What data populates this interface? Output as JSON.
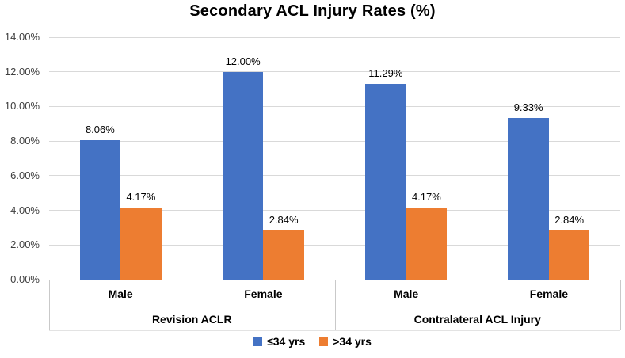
{
  "chart_data": {
    "type": "bar",
    "title": "Secondary ACL Injury Rates (%)",
    "xlabel": "",
    "ylabel": "",
    "groups": [
      {
        "label": "Revision ACLR",
        "categories": [
          "Male",
          "Female"
        ]
      },
      {
        "label": "Contralateral ACL Injury",
        "categories": [
          "Male",
          "Female"
        ]
      }
    ],
    "series": [
      {
        "name": "≤34 yrs",
        "color": "#4472C4",
        "values": [
          [
            8.06,
            12.0
          ],
          [
            11.29,
            9.33
          ]
        ],
        "labels": [
          [
            "8.06%",
            "12.00%"
          ],
          [
            "11.29%",
            "9.33%"
          ]
        ]
      },
      {
        "name": ">34 yrs",
        "color": "#ED7D31",
        "values": [
          [
            4.17,
            2.84
          ],
          [
            4.17,
            2.84
          ]
        ],
        "labels": [
          [
            "4.17%",
            "2.84%"
          ],
          [
            "4.17%",
            "2.84%"
          ]
        ]
      }
    ],
    "ylim": [
      0,
      14
    ],
    "ytick_step": 2,
    "ytick_labels": [
      "0.00%",
      "2.00%",
      "4.00%",
      "6.00%",
      "8.00%",
      "10.00%",
      "12.00%",
      "14.00%"
    ],
    "grid": true,
    "legend_position": "bottom",
    "colors": {
      "series_blue": "#4472C4",
      "series_orange": "#ED7D31",
      "gridline": "#D9D9D9",
      "axis_border": "#C9C9C9",
      "tick_text": "#404040",
      "label_text": "#000000"
    }
  }
}
